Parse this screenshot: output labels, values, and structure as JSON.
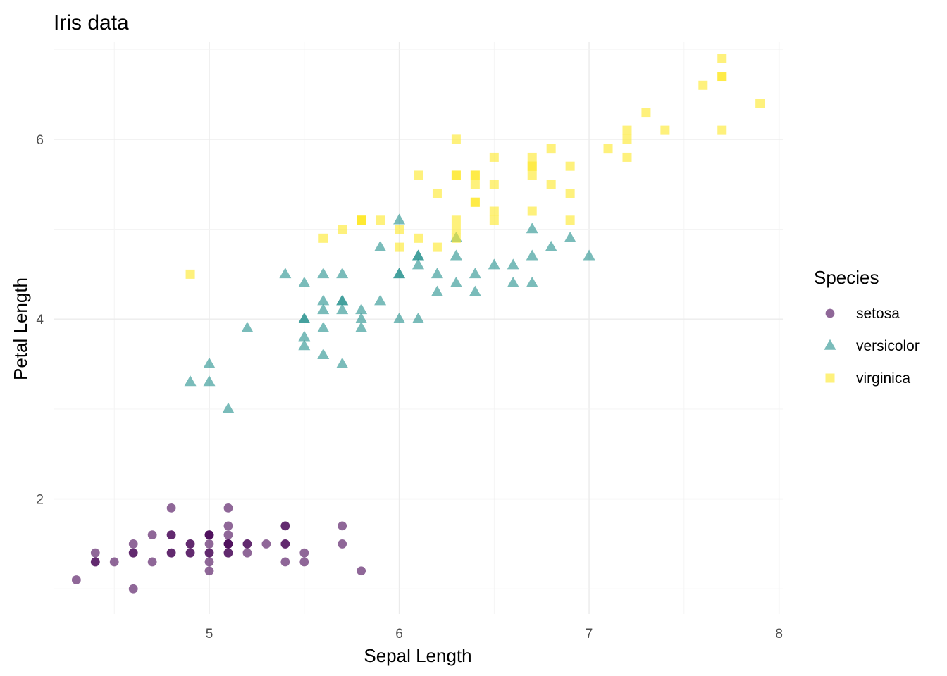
{
  "chart_data": {
    "type": "scatter",
    "title": "Iris data",
    "xlabel": "Sepal Length",
    "ylabel": "Petal Length",
    "xlim": [
      4.18,
      8.02
    ],
    "ylim": [
      0.72,
      7.08
    ],
    "x_ticks": [
      5,
      6,
      7,
      8
    ],
    "y_ticks": [
      2,
      4,
      6
    ],
    "grid": true,
    "legend": {
      "title": "Species",
      "position": "right"
    },
    "series": [
      {
        "name": "setosa",
        "shape": "circle",
        "color": "#440154",
        "points": [
          [
            5.1,
            1.4
          ],
          [
            4.9,
            1.4
          ],
          [
            4.7,
            1.3
          ],
          [
            4.6,
            1.5
          ],
          [
            5.0,
            1.4
          ],
          [
            5.4,
            1.7
          ],
          [
            4.6,
            1.4
          ],
          [
            5.0,
            1.5
          ],
          [
            4.4,
            1.4
          ],
          [
            4.9,
            1.5
          ],
          [
            5.4,
            1.5
          ],
          [
            4.8,
            1.6
          ],
          [
            4.8,
            1.4
          ],
          [
            4.3,
            1.1
          ],
          [
            5.8,
            1.2
          ],
          [
            5.7,
            1.5
          ],
          [
            5.4,
            1.3
          ],
          [
            5.1,
            1.4
          ],
          [
            5.7,
            1.7
          ],
          [
            5.1,
            1.5
          ],
          [
            5.4,
            1.7
          ],
          [
            5.1,
            1.5
          ],
          [
            4.6,
            1.0
          ],
          [
            5.1,
            1.7
          ],
          [
            4.8,
            1.9
          ],
          [
            5.0,
            1.6
          ],
          [
            5.0,
            1.6
          ],
          [
            5.2,
            1.5
          ],
          [
            5.2,
            1.4
          ],
          [
            4.7,
            1.6
          ],
          [
            4.8,
            1.6
          ],
          [
            5.4,
            1.5
          ],
          [
            5.2,
            1.5
          ],
          [
            5.5,
            1.4
          ],
          [
            4.9,
            1.5
          ],
          [
            5.0,
            1.2
          ],
          [
            5.5,
            1.3
          ],
          [
            4.9,
            1.4
          ],
          [
            4.4,
            1.3
          ],
          [
            5.1,
            1.5
          ],
          [
            5.0,
            1.3
          ],
          [
            4.5,
            1.3
          ],
          [
            4.4,
            1.3
          ],
          [
            5.0,
            1.6
          ],
          [
            5.1,
            1.9
          ],
          [
            4.8,
            1.4
          ],
          [
            5.1,
            1.6
          ],
          [
            4.6,
            1.4
          ],
          [
            5.3,
            1.5
          ],
          [
            5.0,
            1.4
          ]
        ]
      },
      {
        "name": "versicolor",
        "shape": "triangle",
        "color": "#21908C",
        "points": [
          [
            7.0,
            4.7
          ],
          [
            6.4,
            4.5
          ],
          [
            6.9,
            4.9
          ],
          [
            5.5,
            4.0
          ],
          [
            6.5,
            4.6
          ],
          [
            5.7,
            4.5
          ],
          [
            6.3,
            4.7
          ],
          [
            4.9,
            3.3
          ],
          [
            6.6,
            4.6
          ],
          [
            5.2,
            3.9
          ],
          [
            5.0,
            3.5
          ],
          [
            5.9,
            4.2
          ],
          [
            6.0,
            4.0
          ],
          [
            6.1,
            4.7
          ],
          [
            5.6,
            3.6
          ],
          [
            6.7,
            4.4
          ],
          [
            5.6,
            4.5
          ],
          [
            5.8,
            4.1
          ],
          [
            6.2,
            4.5
          ],
          [
            5.6,
            3.9
          ],
          [
            5.9,
            4.8
          ],
          [
            6.1,
            4.0
          ],
          [
            6.3,
            4.9
          ],
          [
            6.1,
            4.7
          ],
          [
            6.4,
            4.3
          ],
          [
            6.6,
            4.4
          ],
          [
            6.8,
            4.8
          ],
          [
            6.7,
            5.0
          ],
          [
            6.0,
            4.5
          ],
          [
            5.7,
            3.5
          ],
          [
            5.5,
            3.8
          ],
          [
            5.5,
            3.7
          ],
          [
            5.8,
            3.9
          ],
          [
            6.0,
            5.1
          ],
          [
            5.4,
            4.5
          ],
          [
            6.0,
            4.5
          ],
          [
            6.7,
            4.7
          ],
          [
            6.3,
            4.4
          ],
          [
            5.6,
            4.1
          ],
          [
            5.5,
            4.0
          ],
          [
            5.5,
            4.4
          ],
          [
            6.1,
            4.6
          ],
          [
            5.8,
            4.0
          ],
          [
            5.0,
            3.3
          ],
          [
            5.6,
            4.2
          ],
          [
            5.7,
            4.2
          ],
          [
            5.7,
            4.2
          ],
          [
            6.2,
            4.3
          ],
          [
            5.1,
            3.0
          ],
          [
            5.7,
            4.1
          ]
        ]
      },
      {
        "name": "virginica",
        "shape": "square",
        "color": "#FDE725",
        "points": [
          [
            6.3,
            6.0
          ],
          [
            5.8,
            5.1
          ],
          [
            7.1,
            5.9
          ],
          [
            6.3,
            5.6
          ],
          [
            6.5,
            5.8
          ],
          [
            7.6,
            6.6
          ],
          [
            4.9,
            4.5
          ],
          [
            7.3,
            6.3
          ],
          [
            6.7,
            5.8
          ],
          [
            7.2,
            6.1
          ],
          [
            6.5,
            5.1
          ],
          [
            6.4,
            5.3
          ],
          [
            6.8,
            5.5
          ],
          [
            5.7,
            5.0
          ],
          [
            5.8,
            5.1
          ],
          [
            6.4,
            5.3
          ],
          [
            6.5,
            5.5
          ],
          [
            7.7,
            6.7
          ],
          [
            7.7,
            6.9
          ],
          [
            6.0,
            5.0
          ],
          [
            6.9,
            5.7
          ],
          [
            5.6,
            4.9
          ],
          [
            7.7,
            6.7
          ],
          [
            6.3,
            4.9
          ],
          [
            6.7,
            5.7
          ],
          [
            7.2,
            6.0
          ],
          [
            6.2,
            4.8
          ],
          [
            6.1,
            4.9
          ],
          [
            6.4,
            5.6
          ],
          [
            7.2,
            5.8
          ],
          [
            7.4,
            6.1
          ],
          [
            7.9,
            6.4
          ],
          [
            6.4,
            5.6
          ],
          [
            6.3,
            5.1
          ],
          [
            6.1,
            5.6
          ],
          [
            7.7,
            6.1
          ],
          [
            6.3,
            5.6
          ],
          [
            6.4,
            5.5
          ],
          [
            6.0,
            4.8
          ],
          [
            6.9,
            5.4
          ],
          [
            6.7,
            5.6
          ],
          [
            6.9,
            5.1
          ],
          [
            5.8,
            5.1
          ],
          [
            6.8,
            5.9
          ],
          [
            6.7,
            5.7
          ],
          [
            6.7,
            5.2
          ],
          [
            6.3,
            5.0
          ],
          [
            6.5,
            5.2
          ],
          [
            6.2,
            5.4
          ],
          [
            5.9,
            5.1
          ]
        ]
      }
    ]
  }
}
